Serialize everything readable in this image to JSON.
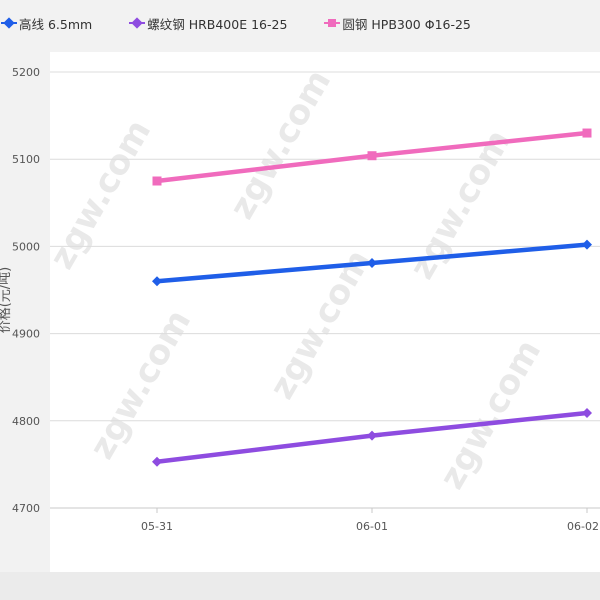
{
  "chart_data": {
    "type": "line",
    "categories": [
      "05-31",
      "06-01",
      "06-02"
    ],
    "ylim": [
      4700,
      5200
    ],
    "yticks": [
      4700,
      4800,
      4900,
      5000,
      5100,
      5200
    ],
    "ylabel": "价格(元/吨)",
    "legend_position": "top-left",
    "grid": "horizontal",
    "series": [
      {
        "name": "高线 6.5mm",
        "marker": "diamond",
        "color": "#1f5ee8",
        "values": [
          4960,
          4981,
          5002
        ]
      },
      {
        "name": "螺纹钢 HRB400E 16-25",
        "marker": "diamond",
        "color": "#8e4ce0",
        "values": [
          4753,
          4783,
          4809
        ]
      },
      {
        "name": "圆钢 HPB300 Φ16-25",
        "marker": "square",
        "color": "#f06bbd",
        "values": [
          5075,
          5104,
          5130
        ]
      }
    ]
  },
  "watermark": {
    "text": "zgw.com"
  }
}
